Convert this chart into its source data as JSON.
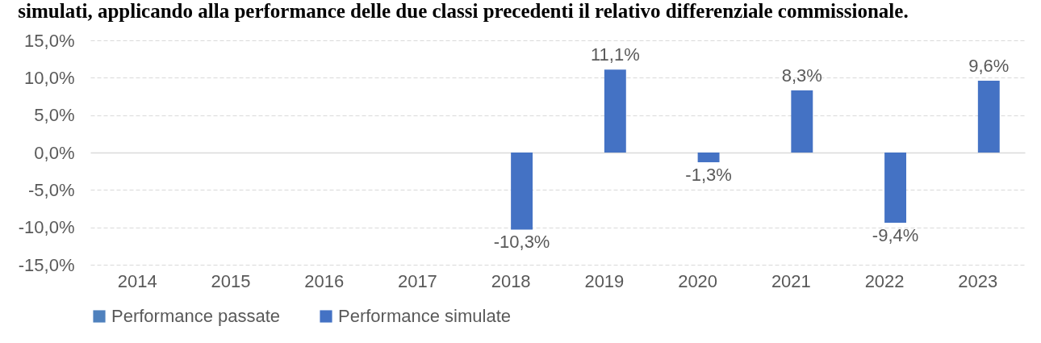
{
  "chart_data": {
    "type": "bar",
    "title": "simulati, applicando alla performance delle due classi precedenti il relativo differenziale commissionale.",
    "categories": [
      "2014",
      "2015",
      "2016",
      "2017",
      "2018",
      "2019",
      "2020",
      "2021",
      "2022",
      "2023"
    ],
    "series": [
      {
        "name": "Performance passate",
        "color": "#4f81bd",
        "values": [
          null,
          null,
          null,
          null,
          null,
          null,
          null,
          null,
          null,
          null
        ]
      },
      {
        "name": "Performance simulate",
        "color": "#4472c4",
        "values": [
          null,
          null,
          null,
          null,
          -10.3,
          11.1,
          -1.3,
          8.3,
          -9.4,
          9.6
        ],
        "value_labels": [
          null,
          null,
          null,
          null,
          "-10,3%",
          "11,1%",
          "-1,3%",
          "8,3%",
          "-9,4%",
          "9,6%"
        ]
      }
    ],
    "ylim": [
      -15,
      15
    ],
    "yticks": [
      {
        "value": -15,
        "label": "-15,0%"
      },
      {
        "value": -10,
        "label": "-10,0%"
      },
      {
        "value": -5,
        "label": "-5,0%"
      },
      {
        "value": 0,
        "label": "0,0%"
      },
      {
        "value": 5,
        "label": "5,0%"
      },
      {
        "value": 10,
        "label": "10,0%"
      },
      {
        "value": 15,
        "label": "15,0%"
      }
    ],
    "grid": "y",
    "legend": "bottom"
  }
}
